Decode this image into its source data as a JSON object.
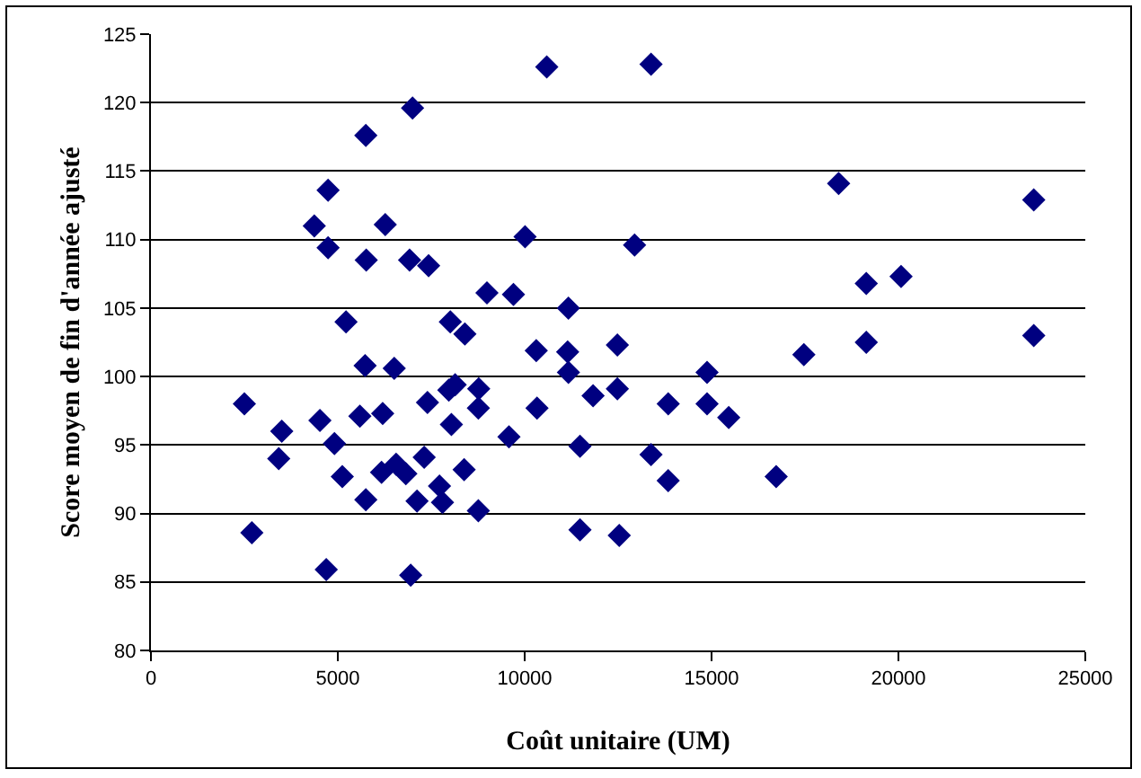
{
  "chart_data": {
    "type": "scatter",
    "xlabel": "Coût unitaire (UM)",
    "ylabel": "Score moyen de fin d'année ajusté",
    "x": [
      2500,
      2700,
      3500,
      3420,
      4370,
      4740,
      4740,
      4690,
      4520,
      4910,
      5120,
      5220,
      5750,
      5730,
      5590,
      5750,
      5760,
      6270,
      6200,
      6170,
      6510,
      6560,
      6820,
      7000,
      6920,
      6950,
      7120,
      7310,
      7430,
      7400,
      7720,
      7800,
      8010,
      8040,
      7970,
      8140,
      8400,
      8770,
      8760,
      8380,
      8760,
      8990,
      9700,
      9580,
      10010,
      10590,
      10310,
      10330,
      11170,
      11150,
      11170,
      11480,
      11480,
      11830,
      12480,
      12480,
      12530,
      13380,
      12940,
      13380,
      13840,
      13840,
      14880,
      14880,
      15460,
      16730,
      18400,
      17470,
      19140,
      19140,
      20070,
      23620,
      23620
    ],
    "values": [
      98.0,
      88.6,
      96.0,
      94.0,
      111.0,
      113.6,
      109.4,
      85.9,
      96.8,
      95.1,
      92.7,
      104.0,
      117.6,
      100.8,
      97.1,
      91.0,
      108.5,
      111.1,
      97.3,
      93.0,
      100.6,
      93.6,
      92.9,
      119.6,
      108.5,
      85.5,
      90.9,
      94.1,
      108.1,
      98.1,
      92.0,
      90.8,
      104.0,
      96.5,
      99.0,
      99.4,
      103.1,
      99.1,
      97.7,
      93.2,
      90.2,
      106.1,
      106.0,
      95.6,
      110.2,
      122.6,
      101.9,
      97.7,
      105.0,
      101.8,
      100.3,
      94.9,
      88.8,
      98.6,
      102.3,
      99.1,
      88.4,
      122.8,
      109.6,
      94.3,
      98.0,
      92.4,
      100.3,
      98.0,
      97.0,
      92.7,
      114.1,
      101.6,
      106.8,
      102.5,
      107.3,
      112.9,
      103.0
    ],
    "color": "#000080",
    "marker": "diamond",
    "xlim": [
      0,
      25000
    ],
    "xticks": [
      0,
      5000,
      10000,
      15000,
      20000,
      25000
    ],
    "ylim": [
      80,
      125
    ],
    "yticks": [
      80,
      85,
      90,
      95,
      100,
      105,
      110,
      115,
      120,
      125
    ],
    "grid": "y"
  }
}
